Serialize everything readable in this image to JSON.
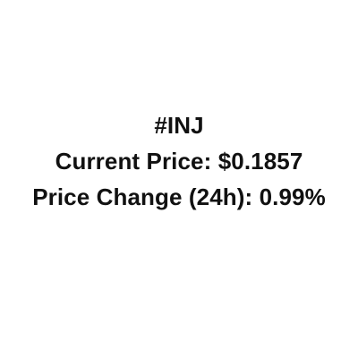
{
  "card": {
    "ticker": "#INJ",
    "current_price_line": "Current Price: $0.1857",
    "price_change_line": "Price Change (24h): 0.99%"
  },
  "colors": {
    "background": "#ffffff",
    "text": "#111111"
  }
}
